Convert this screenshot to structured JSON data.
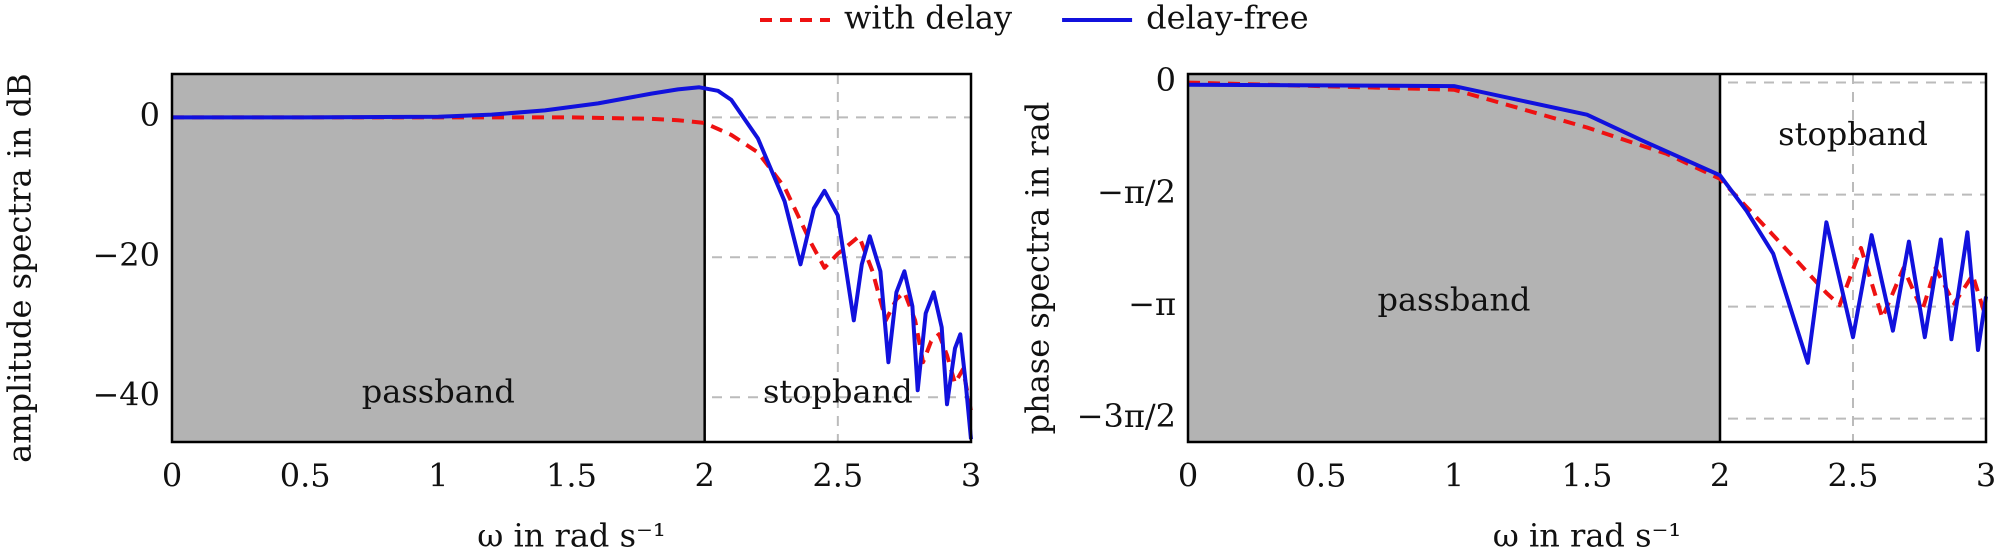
{
  "chart_data": [
    {
      "type": "line",
      "xlabel": "ω in rad s⁻¹",
      "ylabel": "amplitude spectra in dB",
      "xlim": [
        0,
        3
      ],
      "ylim": [
        -46.4,
        6.2
      ],
      "xticks": [
        0,
        0.5,
        1,
        1.5,
        2,
        2.5,
        3
      ],
      "yticks": [
        {
          "value": -40,
          "label": "−40"
        },
        {
          "value": -20,
          "label": "−20"
        },
        0
      ],
      "grid": true,
      "bands": [
        {
          "label": "passband",
          "range": [
            0,
            2
          ],
          "color": "#b3b3b3"
        },
        {
          "label": "stopband",
          "range": [
            2,
            3
          ],
          "color": "#ffffff"
        }
      ],
      "series": [
        {
          "name": "with delay",
          "color": "#ee1111",
          "dash": true,
          "x": [
            0,
            1,
            1.5,
            1.8,
            1.9,
            2,
            2.1,
            2.2,
            2.3,
            2.4,
            2.45,
            2.5,
            2.58,
            2.63,
            2.68,
            2.72,
            2.75,
            2.79,
            2.82,
            2.85,
            2.88,
            2.91,
            2.94,
            2.97,
            3
          ],
          "values": [
            0,
            0,
            0,
            -0.2,
            -0.4,
            -0.8,
            -2.5,
            -5,
            -10,
            -18,
            -21.5,
            -19.5,
            -17,
            -22,
            -29,
            -26,
            -25,
            -29,
            -35,
            -32,
            -31,
            -34,
            -38,
            -36,
            -42
          ]
        },
        {
          "name": "delay-free",
          "color": "#1111dd",
          "dash": false,
          "x": [
            0,
            0.5,
            1,
            1.2,
            1.4,
            1.6,
            1.8,
            1.9,
            1.98,
            2.05,
            2.1,
            2.2,
            2.3,
            2.36,
            2.41,
            2.45,
            2.5,
            2.56,
            2.59,
            2.62,
            2.66,
            2.69,
            2.72,
            2.75,
            2.78,
            2.8,
            2.83,
            2.86,
            2.89,
            2.91,
            2.94,
            2.96,
            2.98,
            3
          ],
          "values": [
            0,
            0,
            0.1,
            0.4,
            1,
            2,
            3.4,
            4,
            4.3,
            3.8,
            2.5,
            -3,
            -12,
            -21,
            -13,
            -10.5,
            -14,
            -29,
            -21,
            -17,
            -22,
            -35,
            -25,
            -22,
            -27,
            -39,
            -28,
            -25,
            -30,
            -41,
            -33,
            -31,
            -38,
            -46
          ]
        }
      ]
    },
    {
      "type": "line",
      "xlabel": "ω in rad s⁻¹",
      "ylabel": "phase spectra in rad",
      "xlim": [
        0,
        3
      ],
      "ylim": [
        -5.04,
        0.12
      ],
      "xticks": [
        0,
        0.5,
        1,
        1.5,
        2,
        2.5,
        3
      ],
      "yticks": [
        {
          "value": -4.712,
          "label": "−3π/2"
        },
        {
          "value": -3.1416,
          "label": "−π"
        },
        {
          "value": -1.5708,
          "label": "−π/2"
        },
        0
      ],
      "grid": true,
      "bands": [
        {
          "label": "passband",
          "range": [
            0,
            2
          ],
          "color": "#b3b3b3"
        },
        {
          "label": "stopband",
          "range": [
            2,
            3
          ],
          "color": "#ffffff"
        }
      ],
      "series": [
        {
          "name": "with delay",
          "color": "#ee1111",
          "dash": true,
          "x": [
            0,
            1,
            1.5,
            1.8,
            2,
            2.2,
            2.4,
            2.45,
            2.53,
            2.61,
            2.69,
            2.76,
            2.81,
            2.88,
            2.95,
            3
          ],
          "values": [
            0,
            -0.1,
            -0.63,
            -1,
            -1.35,
            -2.14,
            -2.95,
            -3.12,
            -2.32,
            -3.3,
            -2.6,
            -3.2,
            -2.6,
            -3.1,
            -2.7,
            -3.3
          ]
        },
        {
          "name": "delay-free",
          "color": "#1111dd",
          "dash": false,
          "x": [
            0,
            1,
            1.5,
            1.7,
            2,
            2.1,
            2.2,
            2.33,
            2.4,
            2.5,
            2.57,
            2.65,
            2.71,
            2.77,
            2.83,
            2.87,
            2.93,
            2.97,
            3
          ],
          "values": [
            -0.03,
            -0.05,
            -0.45,
            -0.8,
            -1.3,
            -1.8,
            -2.4,
            -3.93,
            -1.96,
            -3.57,
            -2.14,
            -3.48,
            -2.23,
            -3.57,
            -2.2,
            -3.6,
            -2.1,
            -3.75,
            -3
          ]
        }
      ]
    }
  ]
}
